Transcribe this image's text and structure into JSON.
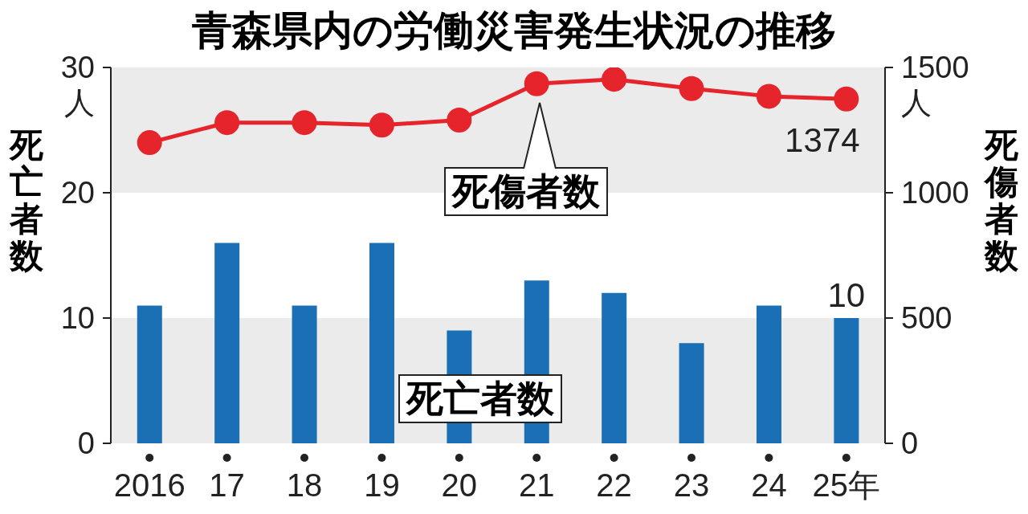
{
  "chart_data": {
    "type": "bar",
    "title": "青森県内の労働災害発生状況の推移",
    "ylabel": "死亡者数",
    "y2label": "死傷者数",
    "categories": [
      "2016",
      "17",
      "18",
      "19",
      "20",
      "21",
      "22",
      "23",
      "24",
      "25年"
    ],
    "series": [
      {
        "name": "死亡者数",
        "color": "#1a6fb5",
        "values": [
          11,
          16,
          11,
          16,
          9,
          13,
          12,
          8,
          11,
          10
        ],
        "value_labels": [
          null,
          null,
          null,
          null,
          null,
          null,
          null,
          null,
          null,
          "10"
        ]
      },
      {
        "name": "死傷者数",
        "type": "line",
        "axis": "y2",
        "color": "#e5242b",
        "marker": "circle",
        "values": [
          1200,
          1280,
          1280,
          1270,
          1290,
          1435,
          1453,
          1416,
          1385,
          1374
        ],
        "value_labels": [
          null,
          null,
          null,
          null,
          null,
          null,
          null,
          null,
          null,
          "1374"
        ]
      }
    ],
    "ylim": [
      0,
      30
    ],
    "yticks": [
      0,
      10,
      20,
      {
        "value": 30,
        "label": "30人"
      }
    ],
    "y2lim": [
      0,
      1500
    ],
    "y2ticks": [
      0,
      500,
      1000,
      {
        "value": 1500,
        "label": "1500人"
      }
    ],
    "bands": [
      {
        "axis": "y",
        "from": 0,
        "to": 10,
        "color": "#ebebeb"
      },
      {
        "axis": "y",
        "from": 20,
        "to": 30,
        "color": "#ebebeb"
      }
    ],
    "grid": false,
    "legend": false
  }
}
